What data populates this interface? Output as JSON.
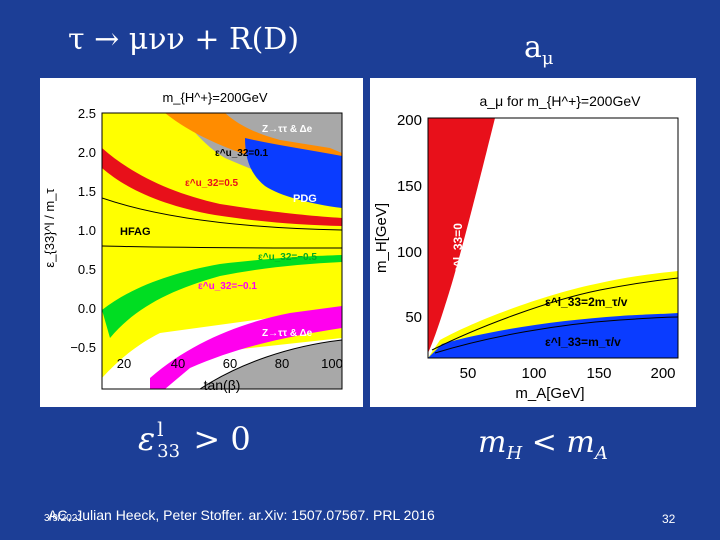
{
  "slide": {
    "title_left": "τ → μνν + R(D)",
    "title_right": "a",
    "title_right_sub": "μ",
    "bottom_left_formula": "ε",
    "bottom_left_super": "l",
    "bottom_left_sub": "33",
    "bottom_left_rel": "> 0",
    "bottom_right_m1": "m",
    "bottom_right_m1_sub": "H",
    "bottom_right_rel": "< m",
    "bottom_right_m2_sub": "A",
    "date": "3/9/2021",
    "citation": "AC, Julian Heeck, Peter Stoffer. ar.Xiv: 1507.07567. PRL 2016",
    "page_number": "32"
  },
  "left_plot": {
    "title": "m_{H^+}=200GeV",
    "ylabel": "ε_{33}^l / m_τ",
    "xlabel": "tan(β)",
    "x_ticks": [
      "20",
      "40",
      "60",
      "80",
      "100"
    ],
    "y_ticks": [
      "2.5",
      "2.0",
      "1.5",
      "1.0",
      "0.5",
      "0.0",
      "−0.5"
    ],
    "labels": {
      "z_top": "Z→ττ & Δe",
      "eps_01": "ε^u_32=0.1",
      "eps_05": "ε^u_32=0.5",
      "pdg": "PDG",
      "hfag": "HFAG",
      "eps_m05": "ε^u_32=−0.5",
      "eps_m01": "ε^u_32=−0.1",
      "z_bottom": "Z→ττ & Δe"
    },
    "colors": {
      "yellow": "#ffff00",
      "red": "#e8101a",
      "orange": "#ff8c00",
      "blue": "#0a3cff",
      "green": "#00dd22",
      "magenta": "#ff00ee",
      "gray": "#a8a8a8"
    }
  },
  "right_plot": {
    "title": "a_μ for m_{H^+}=200GeV",
    "ylabel": "m_H[GeV]",
    "xlabel": "m_A[GeV]",
    "x_ticks": [
      "50",
      "100",
      "150",
      "200"
    ],
    "y_ticks": [
      "200",
      "150",
      "100",
      "50"
    ],
    "labels": {
      "eps0": "ε^l_33=0",
      "eps2": "ε^l_33=2m_τ/v",
      "eps1": "ε^l_33=m_τ/v"
    },
    "colors": {
      "red": "#e8101a",
      "yellow": "#ffff00",
      "blue": "#0a3cff"
    }
  }
}
